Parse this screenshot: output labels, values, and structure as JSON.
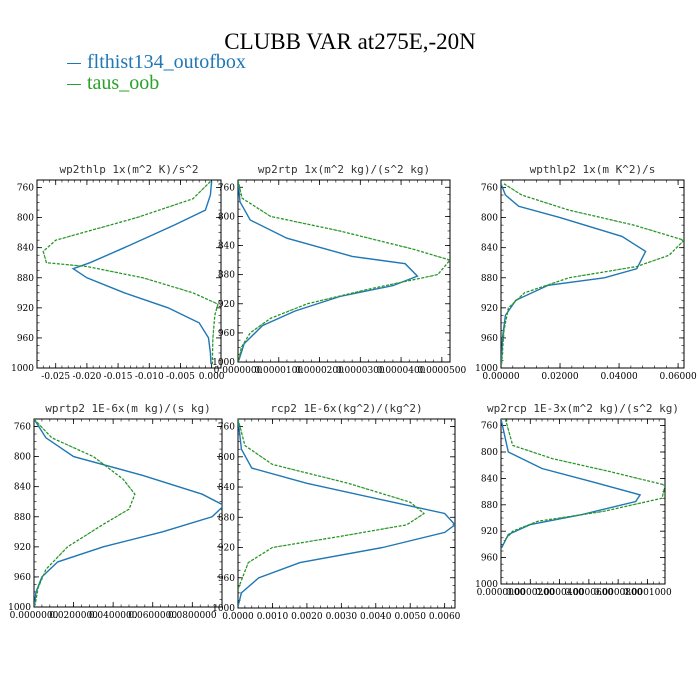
{
  "title": "CLUBB VAR at275E,-20N",
  "legend": [
    {
      "name": "flthist134_outofbox",
      "color": "#1f77b4"
    },
    {
      "name": "taus_oob",
      "color": "#2ca02c"
    }
  ],
  "chart_data": [
    {
      "type": "line",
      "title": "wp2thlp  1x(m^2 K)/s^2",
      "ylim": [
        1000,
        750
      ],
      "yticks": [
        "760",
        "800",
        "840",
        "880",
        "920",
        "960",
        "1000"
      ],
      "xlim": [
        -0.028,
        0.0015
      ],
      "xticks": [
        "-0.025",
        "-0.020",
        "-0.015",
        "-0.010",
        "-0.005",
        "0.000"
      ],
      "series": [
        {
          "name": "flthist134_outofbox",
          "color": "#1f77b4",
          "dash": false,
          "x": [
            0.0,
            -0.0002,
            -0.001,
            -0.006,
            -0.014,
            -0.0195,
            -0.0222,
            -0.02,
            -0.014,
            -0.007,
            -0.002,
            -0.0005,
            -0.0002,
            -0.0001
          ],
          "y": [
            752,
            770,
            790,
            810,
            840,
            860,
            868,
            880,
            900,
            920,
            940,
            960,
            980,
            995
          ]
        },
        {
          "name": "taus_oob",
          "color": "#2ca02c",
          "dash": true,
          "x": [
            -0.0002,
            -0.003,
            -0.012,
            -0.025,
            -0.027,
            -0.0265,
            -0.02,
            -0.011,
            -0.003,
            0.001,
            0.0005,
            0.0002,
            0.0001
          ],
          "y": [
            752,
            775,
            800,
            830,
            845,
            860,
            865,
            880,
            900,
            915,
            930,
            960,
            995
          ]
        }
      ]
    },
    {
      "type": "line",
      "title": "wp2rtp  1x(m^2 kg)/(s^2 kg)",
      "ylim": [
        1000,
        750
      ],
      "yticks": [
        "760",
        "800",
        "840",
        "880",
        "920",
        "960",
        "1000"
      ],
      "xlim": [
        0,
        5.2e-05
      ],
      "xticks": [
        "0.0000000",
        "0.0000100",
        "0.0000200",
        "0.0000300",
        "0.0000400",
        "0.0000500"
      ],
      "series": [
        {
          "name": "flthist134_outofbox",
          "color": "#1f77b4",
          "dash": false,
          "x": [
            0.0,
            5e-07,
            3e-06,
            1.2e-05,
            2.8e-05,
            4.1e-05,
            4.4e-05,
            3.8e-05,
            2.5e-05,
            1.4e-05,
            6e-06,
            1.5e-06,
            2e-07
          ],
          "y": [
            750,
            780,
            805,
            830,
            855,
            865,
            882,
            895,
            910,
            930,
            950,
            975,
            998
          ]
        },
        {
          "name": "taus_oob",
          "color": "#2ca02c",
          "dash": true,
          "x": [
            0.0,
            1e-06,
            8e-06,
            2.5e-05,
            4.3e-05,
            5.2e-05,
            4.9e-05,
            3.2e-05,
            1.7e-05,
            8e-06,
            3e-06,
            8e-07,
            2e-07
          ],
          "y": [
            750,
            775,
            800,
            820,
            845,
            860,
            880,
            900,
            920,
            940,
            960,
            980,
            998
          ]
        }
      ]
    },
    {
      "type": "line",
      "title": "wpthlp2  1x(m K^2)/s",
      "ylim": [
        1000,
        750
      ],
      "yticks": [
        "760",
        "800",
        "840",
        "880",
        "920",
        "960",
        "1000"
      ],
      "xlim": [
        0,
        0.062
      ],
      "xticks": [
        "0.00000",
        "0.02000",
        "0.04000",
        "0.06000"
      ],
      "series": [
        {
          "name": "flthist134_outofbox",
          "color": "#1f77b4",
          "dash": false,
          "x": [
            0.0,
            0.0015,
            0.006,
            0.02,
            0.041,
            0.049,
            0.046,
            0.035,
            0.016,
            0.005,
            0.0015,
            0.0005,
            0.0001
          ],
          "y": [
            755,
            770,
            785,
            800,
            825,
            845,
            868,
            880,
            890,
            910,
            930,
            960,
            995
          ]
        },
        {
          "name": "taus_oob",
          "color": "#2ca02c",
          "dash": true,
          "x": [
            0.001,
            0.007,
            0.023,
            0.045,
            0.062,
            0.057,
            0.046,
            0.023,
            0.008,
            0.0025,
            0.001,
            0.0002
          ],
          "y": [
            755,
            770,
            790,
            810,
            830,
            850,
            865,
            880,
            900,
            920,
            950,
            995
          ]
        }
      ]
    },
    {
      "type": "line",
      "title": "wprtp2  1E-6x(m kg)/(s kg)",
      "ylim": [
        1000,
        750
      ],
      "yticks": [
        "760",
        "800",
        "840",
        "880",
        "920",
        "960",
        "1000"
      ],
      "xlim": [
        0,
        0.095
      ],
      "xticks": [
        "0.0000000",
        "0.0200000",
        "0.0400000",
        "0.0600000",
        "0.0800000"
      ],
      "series": [
        {
          "name": "flthist134_outofbox",
          "color": "#1f77b4",
          "dash": false,
          "x": [
            0.0,
            0.006,
            0.02,
            0.055,
            0.085,
            0.096,
            0.09,
            0.065,
            0.035,
            0.012,
            0.004,
            0.001,
            0.0002
          ],
          "y": [
            750,
            775,
            800,
            825,
            850,
            865,
            880,
            900,
            920,
            940,
            960,
            980,
            998
          ]
        },
        {
          "name": "taus_oob",
          "color": "#2ca02c",
          "dash": true,
          "x": [
            0.0,
            0.009,
            0.03,
            0.045,
            0.051,
            0.048,
            0.035,
            0.017,
            0.006,
            0.002,
            0.0005
          ],
          "y": [
            750,
            775,
            800,
            830,
            850,
            870,
            890,
            920,
            950,
            975,
            998
          ]
        }
      ]
    },
    {
      "type": "line",
      "title": "rcp2  1E-6x(kg^2)/(kg^2)",
      "ylim": [
        1000,
        750
      ],
      "yticks": [
        "760",
        "800",
        "840",
        "880",
        "920",
        "960",
        "1000"
      ],
      "xlim": [
        0,
        0.0063
      ],
      "xticks": [
        "0.0000",
        "0.0010",
        "0.0020",
        "0.0030",
        "0.0040",
        "0.0050",
        "0.0060"
      ],
      "series": [
        {
          "name": "flthist134_outofbox",
          "color": "#1f77b4",
          "dash": false,
          "x": [
            0.0,
            0.0001,
            0.0004,
            0.002,
            0.0045,
            0.006,
            0.0063,
            0.006,
            0.0042,
            0.0018,
            0.0006,
            0.0001,
            0.0
          ],
          "y": [
            750,
            790,
            815,
            835,
            860,
            875,
            890,
            900,
            920,
            940,
            960,
            980,
            998
          ]
        },
        {
          "name": "taus_oob",
          "color": "#2ca02c",
          "dash": true,
          "x": [
            0.0,
            0.0002,
            0.001,
            0.0032,
            0.005,
            0.0054,
            0.0049,
            0.003,
            0.001,
            0.0003,
            0.0
          ],
          "y": [
            750,
            785,
            810,
            835,
            860,
            875,
            890,
            905,
            920,
            940,
            975
          ]
        }
      ]
    },
    {
      "type": "line",
      "title": "wp2rcp  1E-3x(m^2 kg)/(s^2 kg)",
      "ylim": [
        1000,
        750
      ],
      "yticks": [
        "760",
        "800",
        "840",
        "880",
        "920",
        "960",
        "1000"
      ],
      "xlim": [
        0,
        0.000112
      ],
      "xticks": [
        "0.0000000",
        "0.0000200",
        "0.0000400",
        "0.0000600",
        "0.0000800",
        "0.0001000"
      ],
      "series": [
        {
          "name": "flthist134_outofbox",
          "color": "#1f77b4",
          "dash": false,
          "x": [
            0.0,
            5e-06,
            2.8e-05,
            6.2e-05,
            9.5e-05,
            9.2e-05,
            5.5e-05,
            2e-05,
            5e-06,
            5e-07
          ],
          "y": [
            750,
            800,
            825,
            845,
            865,
            875,
            895,
            910,
            925,
            945
          ]
        },
        {
          "name": "taus_oob",
          "color": "#2ca02c",
          "dash": true,
          "x": [
            3e-06,
            8e-06,
            3.5e-05,
            7.5e-05,
            0.000112,
            0.00011,
            7e-05,
            2.5e-05,
            8e-06,
            2e-06
          ],
          "y": [
            750,
            790,
            810,
            830,
            850,
            870,
            890,
            905,
            920,
            935
          ]
        }
      ]
    }
  ]
}
